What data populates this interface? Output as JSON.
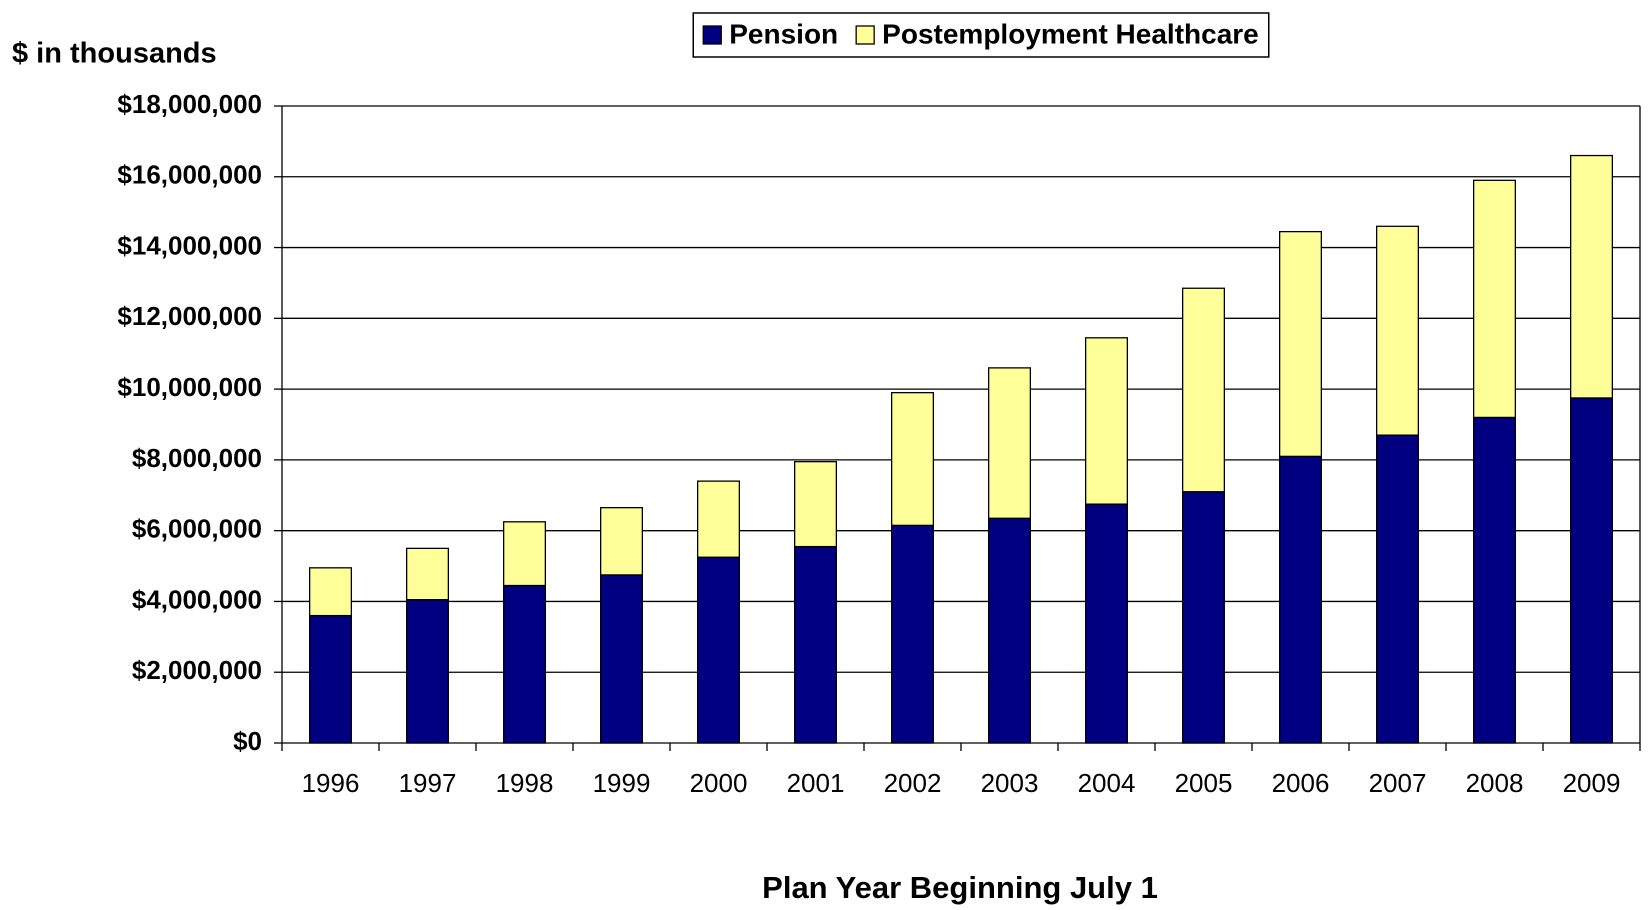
{
  "chart_data": {
    "type": "stacked_bar",
    "y_axis_label": "$ in thousands",
    "x_axis_label": "Plan Year Beginning July 1",
    "categories": [
      "1996",
      "1997",
      "1998",
      "1999",
      "2000",
      "2001",
      "2002",
      "2003",
      "2004",
      "2005",
      "2006",
      "2007",
      "2008",
      "2009"
    ],
    "series": [
      {
        "name": "Pension",
        "color": "#000080",
        "values": [
          3600000,
          4050000,
          4450000,
          4750000,
          5250000,
          5550000,
          6150000,
          6350000,
          6750000,
          7100000,
          8100000,
          8700000,
          9200000,
          9750000
        ]
      },
      {
        "name": "Postemployment Healthcare",
        "color": "#ffff99",
        "values": [
          1350000,
          1450000,
          1800000,
          1900000,
          2150000,
          2400000,
          3750000,
          4250000,
          4700000,
          5750000,
          6350000,
          5900000,
          6700000,
          6850000
        ]
      }
    ],
    "ylim": [
      0,
      18000000
    ],
    "yticks": [
      {
        "value": 0,
        "label": "$0"
      },
      {
        "value": 2000000,
        "label": "$2,000,000"
      },
      {
        "value": 4000000,
        "label": "$4,000,000"
      },
      {
        "value": 6000000,
        "label": "$6,000,000"
      },
      {
        "value": 8000000,
        "label": "$8,000,000"
      },
      {
        "value": 10000000,
        "label": "$10,000,000"
      },
      {
        "value": 12000000,
        "label": "$12,000,000"
      },
      {
        "value": 14000000,
        "label": "$14,000,000"
      },
      {
        "value": 16000000,
        "label": "$16,000,000"
      },
      {
        "value": 18000000,
        "label": "$18,000,000"
      }
    ],
    "grid": true,
    "legend_position": "top"
  }
}
